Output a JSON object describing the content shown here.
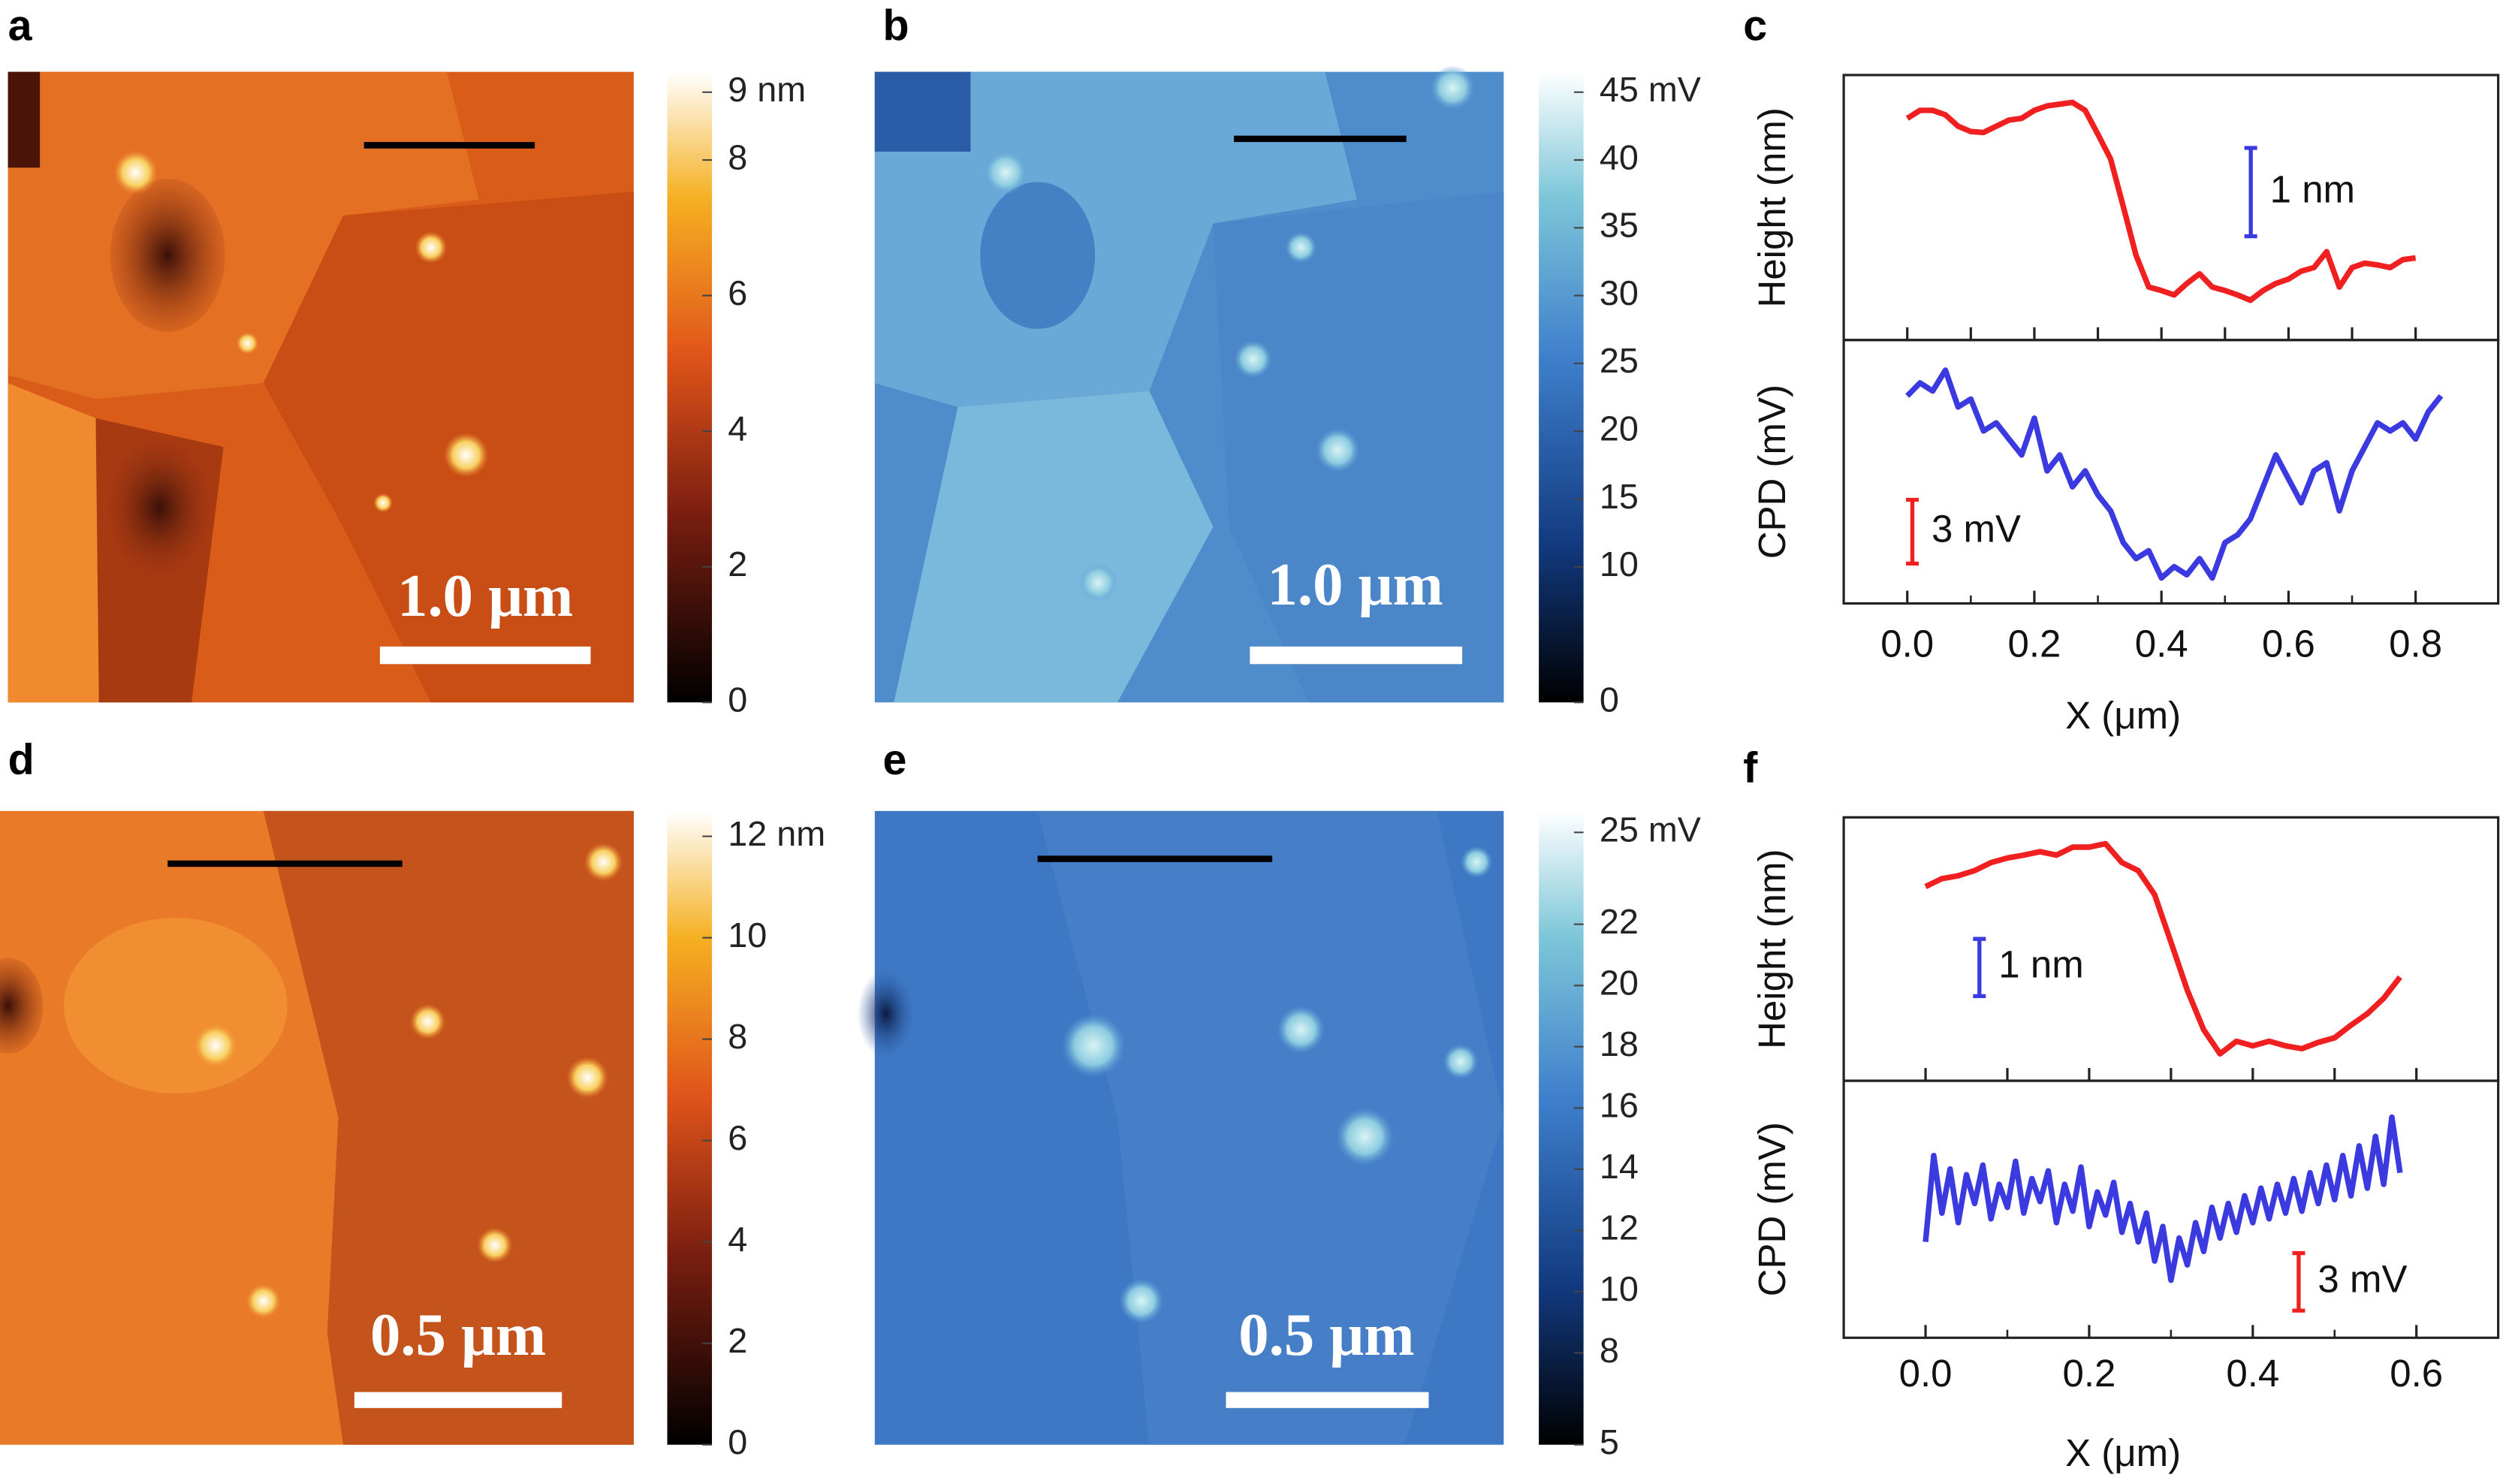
{
  "panels": [
    {
      "label": "a",
      "scale_bar": "1.0 μm",
      "colorbar": {
        "lim": [
          0,
          9.3
        ],
        "ticks": [
          {
            "value": 9,
            "label": "9 nm"
          },
          8,
          6,
          4,
          2,
          0
        ]
      }
    },
    {
      "label": "b",
      "scale_bar": "1.0 μm",
      "colorbar": {
        "lim": [
          0,
          46.5
        ],
        "ticks": [
          {
            "value": 45,
            "label": "45 mV"
          },
          40,
          35,
          30,
          25,
          20,
          15,
          10,
          0
        ]
      }
    },
    {
      "label": "d",
      "scale_bar": "0.5 μm",
      "colorbar": {
        "lim": [
          0,
          12.5
        ],
        "ticks": [
          {
            "value": 12,
            "label": "12 nm"
          },
          10,
          8,
          6,
          4,
          2,
          0
        ]
      }
    },
    {
      "label": "e",
      "scale_bar": "0.5 μm",
      "colorbar": {
        "lim": [
          5,
          25.7
        ],
        "ticks": [
          {
            "value": 25,
            "label": "25 mV"
          },
          22,
          20,
          18,
          16,
          14,
          12,
          10,
          8,
          5
        ]
      }
    }
  ],
  "chart_data": [
    {
      "type": "line",
      "label": "c",
      "ylabel": "Height (nm)",
      "xlim": [
        -0.1,
        0.93
      ],
      "ylim": [
        0,
        3
      ],
      "xticks": [
        0,
        0.1,
        0.2,
        0.3,
        0.4,
        0.5,
        0.6,
        0.7,
        0.8
      ],
      "scale_bar": {
        "value": 1,
        "label": "1 nm",
        "color": "#3a3ae0"
      },
      "x": [
        0,
        0.02,
        0.04,
        0.06,
        0.08,
        0.1,
        0.12,
        0.14,
        0.16,
        0.18,
        0.2,
        0.22,
        0.24,
        0.26,
        0.28,
        0.3,
        0.32,
        0.34,
        0.36,
        0.38,
        0.4,
        0.42,
        0.44,
        0.46,
        0.48,
        0.5,
        0.52,
        0.54,
        0.56,
        0.58,
        0.6,
        0.62,
        0.64,
        0.66,
        0.68,
        0.7,
        0.72,
        0.74,
        0.76,
        0.78,
        0.8
      ],
      "series": [
        {
          "color": "#f02020",
          "values": [
            2.51,
            2.6,
            2.6,
            2.55,
            2.42,
            2.36,
            2.35,
            2.42,
            2.49,
            2.51,
            2.6,
            2.65,
            2.67,
            2.69,
            2.6,
            2.33,
            2.05,
            1.51,
            0.96,
            0.6,
            0.56,
            0.51,
            0.64,
            0.75,
            0.6,
            0.56,
            0.51,
            0.45,
            0.56,
            0.64,
            0.69,
            0.78,
            0.82,
            1.0,
            0.6,
            0.82,
            0.87,
            0.85,
            0.82,
            0.91,
            0.93
          ]
        }
      ]
    },
    {
      "type": "line",
      "ylabel": "CPD (mV)",
      "xlabel": "X (μm)",
      "xlim": [
        -0.1,
        0.93
      ],
      "ylim": [
        0,
        12.4
      ],
      "xticks": [
        {
          "value": 0,
          "label": "0.0"
        },
        0.2,
        0.4,
        0.6,
        0.8
      ],
      "minor_xticks": [
        0.1,
        0.3,
        0.5,
        0.7
      ],
      "scale_bar": {
        "value": 3,
        "label": "3 mV",
        "color": "#f02020"
      },
      "x": [
        0,
        0.02,
        0.04,
        0.06,
        0.08,
        0.1,
        0.12,
        0.14,
        0.16,
        0.18,
        0.2,
        0.22,
        0.24,
        0.26,
        0.28,
        0.3,
        0.32,
        0.34,
        0.36,
        0.38,
        0.4,
        0.42,
        0.44,
        0.46,
        0.48,
        0.5,
        0.52,
        0.54,
        0.56,
        0.58,
        0.6,
        0.62,
        0.64,
        0.66,
        0.68,
        0.7,
        0.72,
        0.74,
        0.76,
        0.78,
        0.8,
        0.82,
        0.84
      ],
      "series": [
        {
          "color": "#3a3ae0",
          "values": [
            9.77,
            10.38,
            10.0,
            10.98,
            9.25,
            9.62,
            8.12,
            8.5,
            7.74,
            6.99,
            8.72,
            6.24,
            6.99,
            5.49,
            6.24,
            5.11,
            4.36,
            2.86,
            2.11,
            2.48,
            1.2,
            1.73,
            1.35,
            2.11,
            1.2,
            2.86,
            3.23,
            3.98,
            5.49,
            6.99,
            5.86,
            4.74,
            6.24,
            6.62,
            4.36,
            6.24,
            7.37,
            8.5,
            8.12,
            8.5,
            7.74,
            9.02,
            9.77
          ]
        }
      ]
    },
    {
      "type": "line",
      "label": "f",
      "ylabel": "Height (nm)",
      "xlim": [
        -0.1,
        0.7
      ],
      "ylim": [
        0,
        4.6
      ],
      "xticks": [
        0,
        0.1,
        0.2,
        0.3,
        0.4,
        0.5,
        0.6
      ],
      "scale_bar": {
        "value": 1,
        "label": "1 nm",
        "color": "#3a3ae0"
      },
      "x": [
        0,
        0.02,
        0.04,
        0.06,
        0.08,
        0.1,
        0.12,
        0.14,
        0.16,
        0.18,
        0.2,
        0.22,
        0.24,
        0.26,
        0.28,
        0.3,
        0.32,
        0.34,
        0.36,
        0.38,
        0.4,
        0.42,
        0.44,
        0.46,
        0.48,
        0.5,
        0.52,
        0.54,
        0.56,
        0.58
      ],
      "series": [
        {
          "color": "#f02020",
          "values": [
            3.39,
            3.53,
            3.58,
            3.67,
            3.81,
            3.89,
            3.94,
            4.0,
            3.94,
            4.08,
            4.08,
            4.14,
            3.81,
            3.67,
            3.25,
            2.42,
            1.58,
            0.89,
            0.47,
            0.69,
            0.61,
            0.69,
            0.61,
            0.56,
            0.67,
            0.75,
            0.97,
            1.17,
            1.44,
            1.81
          ]
        }
      ]
    },
    {
      "type": "line",
      "ylabel": "CPD (mV)",
      "xlabel": "X (μm)",
      "xlim": [
        -0.1,
        0.7
      ],
      "ylim": [
        0,
        13.4
      ],
      "xticks": [
        {
          "value": 0,
          "label": "0.0"
        },
        0.2,
        0.4,
        0.6
      ],
      "minor_xticks": [
        0.1,
        0.3,
        0.5
      ],
      "scale_bar": {
        "value": 3,
        "label": "3 mV",
        "color": "#f02020"
      },
      "x": [
        0,
        0.01,
        0.02,
        0.03,
        0.04,
        0.05,
        0.06,
        0.07,
        0.08,
        0.09,
        0.1,
        0.11,
        0.12,
        0.13,
        0.14,
        0.15,
        0.16,
        0.17,
        0.18,
        0.19,
        0.2,
        0.21,
        0.22,
        0.23,
        0.24,
        0.25,
        0.26,
        0.27,
        0.28,
        0.29,
        0.3,
        0.31,
        0.32,
        0.33,
        0.34,
        0.35,
        0.36,
        0.37,
        0.38,
        0.39,
        0.4,
        0.41,
        0.42,
        0.43,
        0.44,
        0.45,
        0.46,
        0.47,
        0.48,
        0.49,
        0.5,
        0.51,
        0.52,
        0.53,
        0.54,
        0.55,
        0.56,
        0.57,
        0.58
      ],
      "series": [
        {
          "color": "#3a3ae0",
          "values": [
            5.0,
            9.5,
            6.5,
            8.8,
            6.0,
            8.5,
            7.0,
            9.0,
            6.2,
            8.0,
            6.8,
            9.2,
            6.5,
            8.3,
            7.1,
            8.7,
            6.0,
            8.0,
            6.6,
            8.9,
            5.8,
            7.6,
            6.4,
            8.1,
            5.5,
            7.0,
            5.0,
            6.5,
            4.0,
            5.8,
            3.0,
            5.2,
            3.8,
            6.0,
            4.5,
            6.8,
            5.2,
            7.0,
            5.5,
            7.4,
            6.0,
            7.8,
            6.2,
            8.0,
            6.5,
            8.3,
            6.6,
            8.6,
            7.0,
            9.0,
            7.2,
            9.5,
            7.4,
            10.0,
            7.8,
            10.5,
            8.0,
            11.5,
            8.6
          ]
        }
      ]
    }
  ]
}
